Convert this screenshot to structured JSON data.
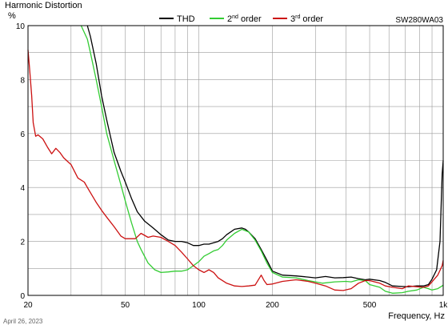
{
  "chart_data": {
    "type": "line",
    "title": "Harmonic Distortion",
    "ylabel": "%",
    "xlabel": "Frequency, Hz",
    "model": "SW280WA03",
    "date": "April 26, 2023",
    "x_scale": "log",
    "xlim": [
      20,
      1000
    ],
    "ylim": [
      0,
      10
    ],
    "grid": true,
    "legend_position": "top",
    "y_ticks": [
      "0",
      "2",
      "4",
      "6",
      "8",
      "10"
    ],
    "x_ticks": [
      {
        "value": 20,
        "label": "20"
      },
      {
        "value": 50,
        "label": "50"
      },
      {
        "value": 100,
        "label": "100"
      },
      {
        "value": 200,
        "label": "200"
      },
      {
        "value": 500,
        "label": "500"
      },
      {
        "value": 1000,
        "label": "1k"
      }
    ],
    "legend": {
      "thd": "THD",
      "second_prefix": "2",
      "second_sup": "nd",
      "second_suffix": " order",
      "third_prefix": "3",
      "third_sup": "rd",
      "third_suffix": " order"
    },
    "series": [
      {
        "name": "THD",
        "color": "#000000",
        "points": [
          [
            35,
            10
          ],
          [
            36,
            9.6
          ],
          [
            38,
            8.6
          ],
          [
            40,
            7.4
          ],
          [
            42,
            6.5
          ],
          [
            45,
            5.3
          ],
          [
            48,
            4.6
          ],
          [
            50,
            4.2
          ],
          [
            53,
            3.6
          ],
          [
            56,
            3.1
          ],
          [
            60,
            2.75
          ],
          [
            65,
            2.5
          ],
          [
            70,
            2.25
          ],
          [
            75,
            2.05
          ],
          [
            80,
            2.0
          ],
          [
            85,
            2.0
          ],
          [
            90,
            1.95
          ],
          [
            95,
            1.85
          ],
          [
            100,
            1.85
          ],
          [
            105,
            1.9
          ],
          [
            110,
            1.9
          ],
          [
            115,
            1.95
          ],
          [
            120,
            2.0
          ],
          [
            125,
            2.1
          ],
          [
            130,
            2.25
          ],
          [
            140,
            2.45
          ],
          [
            150,
            2.5
          ],
          [
            155,
            2.45
          ],
          [
            160,
            2.35
          ],
          [
            170,
            2.1
          ],
          [
            180,
            1.7
          ],
          [
            190,
            1.3
          ],
          [
            200,
            0.9
          ],
          [
            220,
            0.75
          ],
          [
            250,
            0.72
          ],
          [
            280,
            0.68
          ],
          [
            300,
            0.65
          ],
          [
            330,
            0.7
          ],
          [
            360,
            0.65
          ],
          [
            390,
            0.66
          ],
          [
            420,
            0.68
          ],
          [
            450,
            0.62
          ],
          [
            480,
            0.58
          ],
          [
            500,
            0.6
          ],
          [
            550,
            0.55
          ],
          [
            580,
            0.48
          ],
          [
            620,
            0.35
          ],
          [
            680,
            0.33
          ],
          [
            720,
            0.32
          ],
          [
            780,
            0.35
          ],
          [
            830,
            0.35
          ],
          [
            870,
            0.4
          ],
          [
            900,
            0.6
          ],
          [
            940,
            0.95
          ],
          [
            970,
            2.0
          ],
          [
            990,
            4.5
          ],
          [
            1000,
            5.0
          ]
        ]
      },
      {
        "name": "2nd order",
        "color": "#33cc33",
        "points": [
          [
            33,
            10
          ],
          [
            35,
            9.5
          ],
          [
            36,
            9.0
          ],
          [
            38,
            8.0
          ],
          [
            40,
            7.0
          ],
          [
            42,
            6.0
          ],
          [
            45,
            5.0
          ],
          [
            48,
            4.1
          ],
          [
            50,
            3.5
          ],
          [
            53,
            2.7
          ],
          [
            56,
            2.0
          ],
          [
            58,
            1.7
          ],
          [
            62,
            1.2
          ],
          [
            66,
            0.95
          ],
          [
            70,
            0.85
          ],
          [
            75,
            0.87
          ],
          [
            80,
            0.9
          ],
          [
            85,
            0.9
          ],
          [
            90,
            0.95
          ],
          [
            95,
            1.1
          ],
          [
            100,
            1.25
          ],
          [
            105,
            1.45
          ],
          [
            110,
            1.55
          ],
          [
            115,
            1.65
          ],
          [
            120,
            1.7
          ],
          [
            125,
            1.85
          ],
          [
            130,
            2.05
          ],
          [
            140,
            2.3
          ],
          [
            150,
            2.45
          ],
          [
            155,
            2.4
          ],
          [
            160,
            2.35
          ],
          [
            170,
            2.05
          ],
          [
            180,
            1.65
          ],
          [
            190,
            1.2
          ],
          [
            200,
            0.85
          ],
          [
            220,
            0.68
          ],
          [
            250,
            0.65
          ],
          [
            280,
            0.55
          ],
          [
            300,
            0.5
          ],
          [
            320,
            0.45
          ],
          [
            360,
            0.5
          ],
          [
            400,
            0.52
          ],
          [
            420,
            0.5
          ],
          [
            450,
            0.58
          ],
          [
            480,
            0.55
          ],
          [
            500,
            0.4
          ],
          [
            550,
            0.3
          ],
          [
            580,
            0.15
          ],
          [
            620,
            0.08
          ],
          [
            680,
            0.1
          ],
          [
            720,
            0.15
          ],
          [
            780,
            0.2
          ],
          [
            830,
            0.3
          ],
          [
            870,
            0.25
          ],
          [
            900,
            0.2
          ],
          [
            950,
            0.25
          ],
          [
            990,
            0.35
          ],
          [
            1000,
            0.38
          ]
        ]
      },
      {
        "name": "3rd order",
        "color": "#cc1111",
        "points": [
          [
            20,
            9.1
          ],
          [
            20.3,
            8.4
          ],
          [
            20.7,
            7.4
          ],
          [
            21,
            6.4
          ],
          [
            21.5,
            5.9
          ],
          [
            22,
            5.95
          ],
          [
            23,
            5.8
          ],
          [
            24,
            5.5
          ],
          [
            25,
            5.25
          ],
          [
            26,
            5.45
          ],
          [
            27,
            5.3
          ],
          [
            28,
            5.1
          ],
          [
            30,
            4.85
          ],
          [
            32,
            4.35
          ],
          [
            34,
            4.2
          ],
          [
            35,
            4.0
          ],
          [
            38,
            3.45
          ],
          [
            40,
            3.15
          ],
          [
            42,
            2.9
          ],
          [
            45,
            2.55
          ],
          [
            48,
            2.2
          ],
          [
            50,
            2.1
          ],
          [
            55,
            2.1
          ],
          [
            58,
            2.3
          ],
          [
            62,
            2.15
          ],
          [
            65,
            2.2
          ],
          [
            70,
            2.15
          ],
          [
            75,
            2.0
          ],
          [
            80,
            1.85
          ],
          [
            85,
            1.6
          ],
          [
            90,
            1.35
          ],
          [
            95,
            1.1
          ],
          [
            100,
            0.95
          ],
          [
            105,
            0.85
          ],
          [
            110,
            0.95
          ],
          [
            115,
            0.85
          ],
          [
            120,
            0.65
          ],
          [
            130,
            0.45
          ],
          [
            140,
            0.35
          ],
          [
            150,
            0.33
          ],
          [
            160,
            0.35
          ],
          [
            170,
            0.38
          ],
          [
            180,
            0.75
          ],
          [
            185,
            0.55
          ],
          [
            190,
            0.4
          ],
          [
            200,
            0.42
          ],
          [
            220,
            0.52
          ],
          [
            250,
            0.58
          ],
          [
            280,
            0.52
          ],
          [
            300,
            0.45
          ],
          [
            330,
            0.35
          ],
          [
            360,
            0.2
          ],
          [
            390,
            0.18
          ],
          [
            420,
            0.25
          ],
          [
            450,
            0.45
          ],
          [
            480,
            0.55
          ],
          [
            500,
            0.55
          ],
          [
            550,
            0.45
          ],
          [
            580,
            0.35
          ],
          [
            620,
            0.3
          ],
          [
            680,
            0.25
          ],
          [
            720,
            0.35
          ],
          [
            780,
            0.32
          ],
          [
            830,
            0.3
          ],
          [
            870,
            0.35
          ],
          [
            900,
            0.5
          ],
          [
            950,
            0.75
          ],
          [
            990,
            1.1
          ],
          [
            1000,
            1.3
          ]
        ]
      }
    ]
  }
}
